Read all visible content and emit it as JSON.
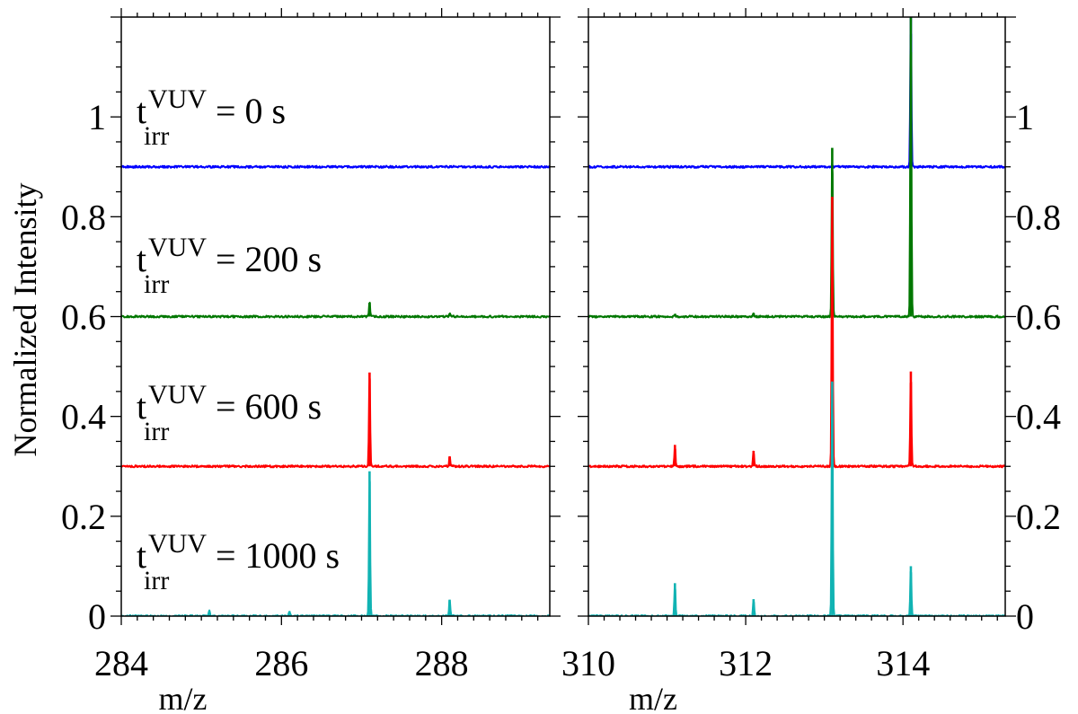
{
  "chart_data": {
    "type": "line",
    "ylabel": "Normalized Intensity",
    "ylim": [
      0,
      1.2
    ],
    "yticks": [
      "0",
      "0.2",
      "0.4",
      "0.6",
      "0.8",
      "1"
    ],
    "panels": [
      {
        "xlabel": "m/z",
        "xlim": [
          284,
          289.35
        ],
        "xticks": [
          "284",
          "286",
          "288"
        ]
      },
      {
        "xlabel": "m/z",
        "xlim": [
          310,
          315.3
        ],
        "xticks": [
          "310",
          "312",
          "314"
        ]
      }
    ],
    "series": [
      {
        "label_base": "t",
        "label_sup": "VUV",
        "label_sub": "irr",
        "label_value": "= 0 s",
        "color": "#0000ff",
        "offset": 0.9,
        "peaks": [
          {
            "mz": 314.1,
            "height": 0.3
          }
        ]
      },
      {
        "label_base": "t",
        "label_sup": "VUV",
        "label_sub": "irr",
        "label_value": "= 200 s",
        "color": "#007700",
        "offset": 0.6,
        "peaks": [
          {
            "mz": 287.1,
            "height": 0.028
          },
          {
            "mz": 288.1,
            "height": 0.006
          },
          {
            "mz": 311.1,
            "height": 0.005
          },
          {
            "mz": 312.1,
            "height": 0.005
          },
          {
            "mz": 313.1,
            "height": 0.338
          },
          {
            "mz": 314.1,
            "height": 0.6
          }
        ]
      },
      {
        "label_base": "t",
        "label_sup": "VUV",
        "label_sub": "irr",
        "label_value": "= 600 s",
        "color": "#ff0000",
        "offset": 0.3,
        "peaks": [
          {
            "mz": 287.1,
            "height": 0.188
          },
          {
            "mz": 288.1,
            "height": 0.02
          },
          {
            "mz": 311.1,
            "height": 0.043
          },
          {
            "mz": 312.1,
            "height": 0.031
          },
          {
            "mz": 313.1,
            "height": 0.54
          },
          {
            "mz": 314.1,
            "height": 0.19
          }
        ]
      },
      {
        "label_base": "t",
        "label_sup": "VUV",
        "label_sub": "irr",
        "label_value": "= 1000 s",
        "color": "#11b3b3",
        "offset": 0.0,
        "peaks": [
          {
            "mz": 285.1,
            "height": 0.01
          },
          {
            "mz": 286.1,
            "height": 0.01
          },
          {
            "mz": 287.1,
            "height": 0.29
          },
          {
            "mz": 288.1,
            "height": 0.033
          },
          {
            "mz": 311.1,
            "height": 0.066
          },
          {
            "mz": 312.1,
            "height": 0.034
          },
          {
            "mz": 313.1,
            "height": 0.47
          },
          {
            "mz": 314.1,
            "height": 0.1
          }
        ]
      }
    ]
  }
}
